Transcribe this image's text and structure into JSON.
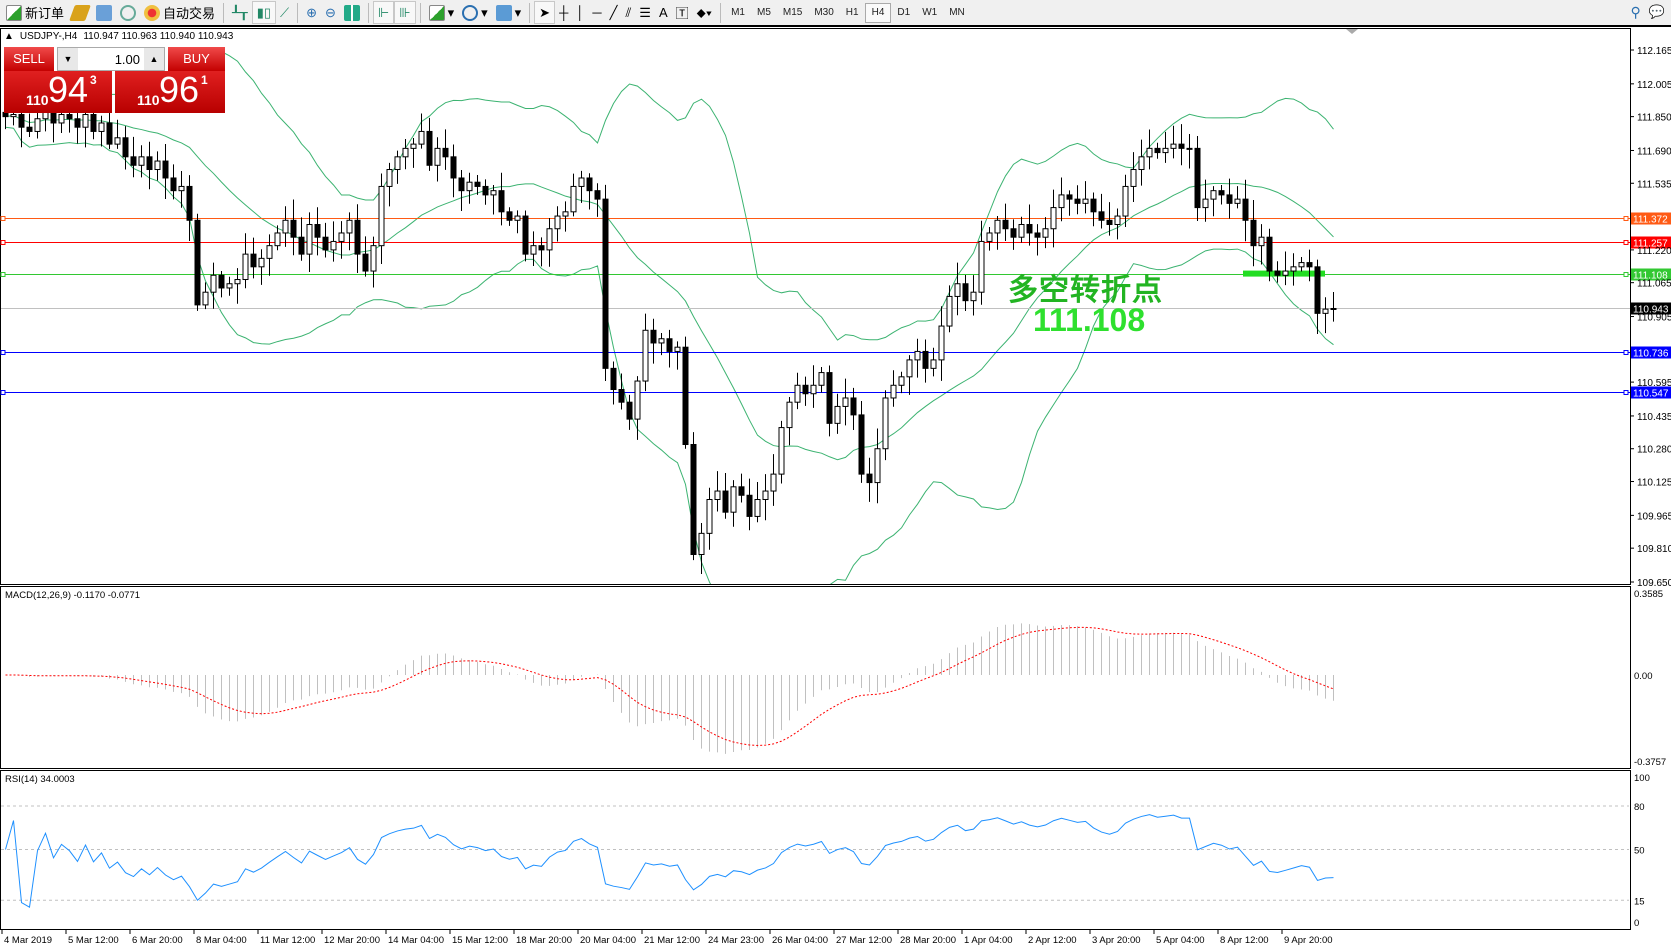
{
  "toolbar": {
    "new_order": "新订单",
    "auto_trading": "自动交易",
    "icons": [
      "new-order-icon",
      "history-icon",
      "terminal-icon",
      "signals-icon",
      "auto-trading-icon",
      "bar-chart-icon",
      "candlestick-icon",
      "line-chart-icon",
      "zoom-in-icon",
      "zoom-out-icon",
      "tile-windows-icon",
      "auto-scroll-icon",
      "chart-shift-icon",
      "indicators-icon",
      "periods-icon",
      "templates-icon",
      "cursor-icon",
      "crosshair-icon",
      "vertical-line-icon",
      "horizontal-line-icon",
      "trendline-icon",
      "equidistant-channel-icon",
      "fibonacci-icon",
      "text-icon",
      "text-label-icon",
      "arrows-icon",
      "search-icon",
      "chat-icon"
    ],
    "text_tool": "A",
    "timeframes": [
      "M1",
      "M5",
      "M15",
      "M30",
      "H1",
      "H4",
      "D1",
      "W1",
      "MN"
    ],
    "active_timeframe": "H4"
  },
  "chart": {
    "symbol": "USDJPY-,H4",
    "ohlc": "110.947 110.963 110.940 110.943",
    "trade_panel": {
      "sell_label": "SELL",
      "buy_label": "BUY",
      "lot": "1.00",
      "sell_price": {
        "prefix": "110",
        "big": "94",
        "sup": "3"
      },
      "buy_price": {
        "prefix": "110",
        "big": "96",
        "sup": "1"
      }
    },
    "annotation": {
      "text": "多空转折点",
      "value": "111.108",
      "color": "#22b422"
    },
    "price_ticks": [
      "112.165",
      "112.005",
      "111.850",
      "111.690",
      "111.535",
      "111.220",
      "111.065",
      "110.905",
      "110.595",
      "110.435",
      "110.280",
      "110.125",
      "109.965",
      "109.810",
      "109.650"
    ],
    "levels": [
      {
        "price": "111.372",
        "color": "#ff5a14"
      },
      {
        "price": "111.257",
        "color": "#ff0000"
      },
      {
        "price": "111.108",
        "color": "#32c832"
      },
      {
        "price": "110.943",
        "color": "#000000",
        "line_color": "#c0c0c0"
      },
      {
        "price": "110.736",
        "color": "#0000ff"
      },
      {
        "price": "110.547",
        "color": "#0000ff"
      }
    ],
    "bollinger_color": "#3cb371",
    "closes": [
      111.85,
      111.86,
      111.8,
      111.78,
      111.84,
      111.88,
      111.82,
      111.86,
      111.84,
      111.8,
      111.86,
      111.78,
      111.82,
      111.72,
      111.75,
      111.66,
      111.62,
      111.66,
      111.6,
      111.64,
      111.56,
      111.5,
      111.52,
      111.36,
      110.96,
      111.02,
      111.1,
      111.04,
      111.06,
      111.08,
      111.2,
      111.14,
      111.18,
      111.24,
      111.3,
      111.36,
      111.28,
      111.2,
      111.34,
      111.28,
      111.22,
      111.26,
      111.3,
      111.36,
      111.2,
      111.12,
      111.24,
      111.52,
      111.6,
      111.66,
      111.7,
      111.72,
      111.78,
      111.62,
      111.7,
      111.66,
      111.56,
      111.5,
      111.54,
      111.52,
      111.48,
      111.5,
      111.4,
      111.36,
      111.38,
      111.2,
      111.24,
      111.22,
      111.32,
      111.38,
      111.4,
      111.52,
      111.56,
      111.5,
      111.46,
      110.66,
      110.56,
      110.5,
      110.42,
      110.6,
      110.84,
      110.78,
      110.8,
      110.74,
      110.76,
      110.3,
      109.78,
      109.88,
      110.04,
      110.08,
      109.98,
      110.1,
      110.06,
      109.96,
      110.04,
      110.08,
      110.16,
      110.38,
      110.5,
      110.58,
      110.54,
      110.58,
      110.64,
      110.4,
      110.48,
      110.52,
      110.44,
      110.16,
      110.12,
      110.28,
      110.52,
      110.58,
      110.62,
      110.7,
      110.74,
      110.66,
      110.7,
      110.86,
      111.0,
      111.06,
      110.98,
      111.02,
      111.26,
      111.3,
      111.36,
      111.32,
      111.28,
      111.34,
      111.3,
      111.28,
      111.32,
      111.42,
      111.48,
      111.46,
      111.44,
      111.46,
      111.4,
      111.36,
      111.34,
      111.38,
      111.52,
      111.6,
      111.66,
      111.7,
      111.68,
      111.7,
      111.72,
      111.7,
      111.7,
      111.42,
      111.46,
      111.5,
      111.48,
      111.44,
      111.46,
      111.36,
      111.24,
      111.28,
      111.12,
      111.1,
      111.12,
      111.14,
      111.16,
      111.14,
      110.92,
      110.94,
      110.943
    ],
    "time_labels": [
      "4 Mar 2019",
      "5 Mar 12:00",
      "6 Mar 20:00",
      "8 Mar 04:00",
      "11 Mar 12:00",
      "12 Mar 20:00",
      "14 Mar 04:00",
      "15 Mar 12:00",
      "18 Mar 20:00",
      "20 Mar 04:00",
      "21 Mar 12:00",
      "24 Mar 23:00",
      "26 Mar 04:00",
      "27 Mar 12:00",
      "28 Mar 20:00",
      "1 Apr 04:00",
      "2 Apr 12:00",
      "3 Apr 20:00",
      "5 Apr 04:00",
      "8 Apr 12:00",
      "9 Apr 20:00"
    ]
  },
  "macd": {
    "title": "MACD(12,26,9) -0.1170 -0.0771",
    "ticks": [
      "0.3585",
      "0.00",
      "-0.3757"
    ],
    "signal_color": "#ff0000",
    "hist_color": "#c0c0c0"
  },
  "rsi": {
    "title": "RSI(14) 34.0003",
    "ticks": [
      "100",
      "80",
      "50",
      "15",
      "0"
    ],
    "line_color": "#1e90ff"
  }
}
